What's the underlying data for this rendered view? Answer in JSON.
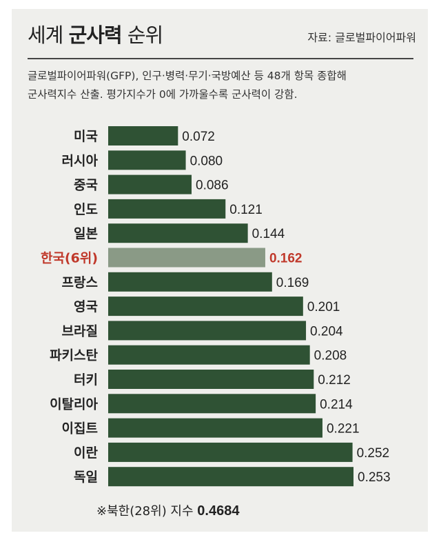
{
  "header": {
    "title_prefix": "세계 ",
    "title_bold": "군사력",
    "title_suffix": " 순위",
    "source": "자료: 글로벌파이어파워"
  },
  "description": {
    "line1": "글로벌파이어파워(GFP), 인구·병력·무기·국방예산 등 48개 항목 종합해",
    "line2": "군사력지수 산출. 평가지수가 0에 가까울수록 군사력이 강함."
  },
  "chart_data": {
    "type": "bar",
    "orientation": "horizontal",
    "categories": [
      "미국",
      "러시아",
      "중국",
      "인도",
      "일본",
      "한국(6위)",
      "프랑스",
      "영국",
      "브라질",
      "파키스탄",
      "터키",
      "이탈리아",
      "이집트",
      "이란",
      "독일"
    ],
    "values": [
      0.072,
      0.08,
      0.086,
      0.121,
      0.144,
      0.162,
      0.169,
      0.201,
      0.204,
      0.208,
      0.212,
      0.214,
      0.221,
      0.252,
      0.253
    ],
    "value_labels": [
      "0.072",
      "0.080",
      "0.086",
      "0.121",
      "0.144",
      "0.162",
      "0.169",
      "0.201",
      "0.204",
      "0.208",
      "0.212",
      "0.214",
      "0.221",
      "0.252",
      "0.253"
    ],
    "highlight_index": 5,
    "title": "",
    "xlabel": "",
    "ylabel": "",
    "grid": false
  },
  "colors": {
    "bar": "#2f5234",
    "highlight_bar": "#8a9a86",
    "highlight_text": "#c0392b",
    "label_text": "#222222"
  },
  "footnote": {
    "prefix": "※북한(28위) 지수 ",
    "value": "0.4684"
  }
}
